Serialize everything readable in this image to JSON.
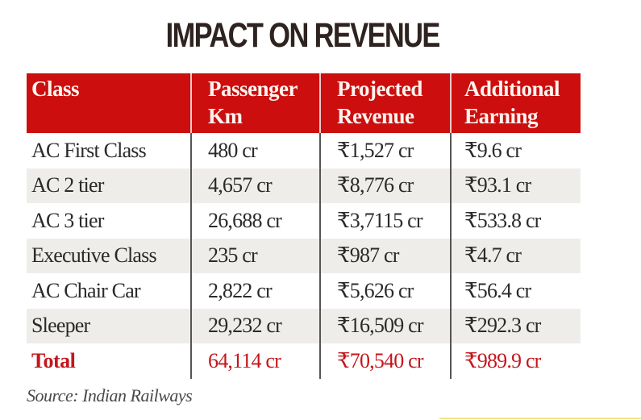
{
  "title": "IMPACT ON REVENUE",
  "source": "Source: Indian Railways",
  "colors": {
    "header_bg": "#cc0e0e",
    "header_text": "#fff4ef",
    "total_text": "#c4161c",
    "shaded_row": "#efedea"
  },
  "chart_data": {
    "type": "table",
    "title": "IMPACT ON REVENUE",
    "columns": [
      "Class",
      "Passenger Km",
      "Projected Revenue",
      "Additional Earning"
    ],
    "rows": [
      [
        "AC First Class",
        "480 cr",
        "₹1,527 cr",
        "₹9.6 cr"
      ],
      [
        "AC 2 tier",
        "4,657 cr",
        "₹8,776 cr",
        "₹93.1 cr"
      ],
      [
        "AC 3 tier",
        "26,688 cr",
        "₹3,7115 cr",
        "₹533.8 cr"
      ],
      [
        "Executive Class",
        "235 cr",
        "₹987 cr",
        "₹4.7 cr"
      ],
      [
        "AC Chair Car",
        "2,822 cr",
        "₹5,626 cr",
        "₹56.4 cr"
      ],
      [
        "Sleeper",
        "29,232 cr",
        "₹16,509 cr",
        "₹292.3 cr"
      ]
    ],
    "total": [
      "Total",
      "64,114 cr",
      "₹70,540 cr",
      "₹989.9 cr"
    ],
    "source": "Source: Indian Railways"
  },
  "table": {
    "headers": [
      "Class",
      "Passenger Km",
      "Projected Revenue",
      "Additional Earning"
    ],
    "rows": [
      {
        "class": "AC First Class",
        "passenger_km": "480 cr",
        "projected_revenue": "₹1,527 cr",
        "additional_earning": "₹9.6 cr"
      },
      {
        "class": "AC 2 tier",
        "passenger_km": "4,657 cr",
        "projected_revenue": "₹8,776 cr",
        "additional_earning": "₹93.1 cr"
      },
      {
        "class": "AC 3 tier",
        "passenger_km": "26,688 cr",
        "projected_revenue": "₹3,7115 cr",
        "additional_earning": "₹533.8 cr"
      },
      {
        "class": "Executive Class",
        "passenger_km": "235 cr",
        "projected_revenue": "₹987 cr",
        "additional_earning": "₹4.7 cr"
      },
      {
        "class": "AC Chair Car",
        "passenger_km": "2,822 cr",
        "projected_revenue": "₹5,626 cr",
        "additional_earning": "₹56.4 cr"
      },
      {
        "class": "Sleeper",
        "passenger_km": "29,232 cr",
        "projected_revenue": "₹16,509 cr",
        "additional_earning": "₹292.3 cr"
      }
    ],
    "total": {
      "class": "Total",
      "passenger_km": "64,114 cr",
      "projected_revenue": "₹70,540 cr",
      "additional_earning": "₹989.9 cr"
    }
  }
}
